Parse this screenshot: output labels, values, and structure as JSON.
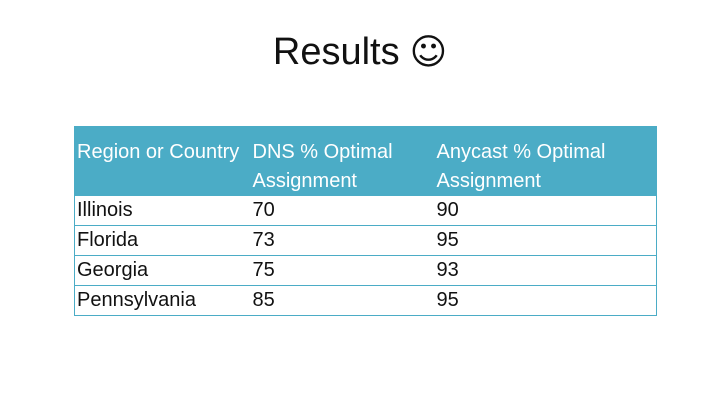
{
  "slide": {
    "title": "Results",
    "title_emoji": "☺"
  },
  "colors": {
    "header_fill": "#4bacc6",
    "border": "#4bacc6"
  },
  "table": {
    "headers": [
      "Region or Country",
      "DNS % Optimal Assignment",
      "Anycast % Optimal Assignment"
    ],
    "rows": [
      [
        "Illinois",
        "70",
        "90"
      ],
      [
        "Florida",
        "73",
        "95"
      ],
      [
        "Georgia",
        "75",
        "93"
      ],
      [
        "Pennsylvania",
        "85",
        "95"
      ]
    ]
  }
}
